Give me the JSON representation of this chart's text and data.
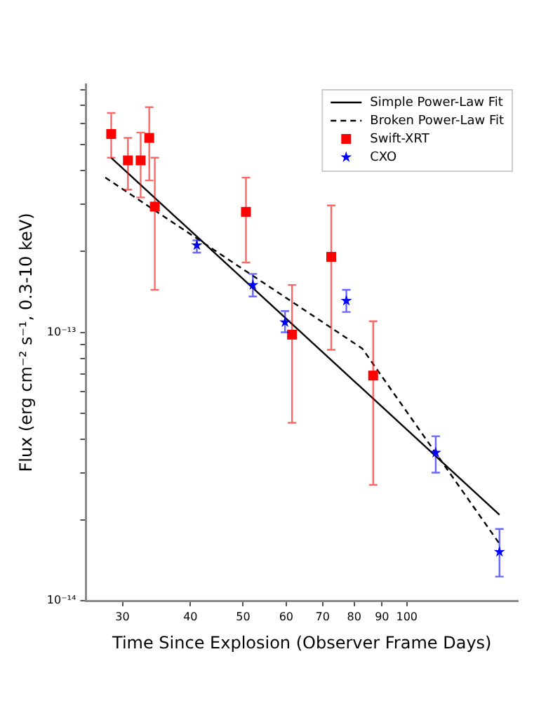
{
  "chart_data": {
    "type": "scatter",
    "xlabel": "Time Since Explosion (Observer Frame Days)",
    "ylabel": "Flux (erg cm⁻² s⁻¹, 0.3-10 keV)",
    "log": "xy",
    "xlim": [
      25.7,
      160
    ],
    "ylim": [
      1e-14,
      8.4e-13
    ],
    "xticks": [
      30,
      40,
      50,
      60,
      70,
      80,
      90,
      100
    ],
    "yticks": [
      {
        "value": 1e-14,
        "label": "10⁻¹⁴"
      },
      {
        "value": 2e-14,
        "label": null
      },
      {
        "value": 3e-14,
        "label": null
      },
      {
        "value": 4e-14,
        "label": null
      },
      {
        "value": 5e-14,
        "label": null
      },
      {
        "value": 6e-14,
        "label": null
      },
      {
        "value": 7e-14,
        "label": null
      },
      {
        "value": 8e-14,
        "label": null
      },
      {
        "value": 9e-14,
        "label": null
      },
      {
        "value": 1e-13,
        "label": "10⁻¹³"
      },
      {
        "value": 2e-13,
        "label": null
      },
      {
        "value": 3e-13,
        "label": null
      },
      {
        "value": 4e-13,
        "label": null
      },
      {
        "value": 5e-13,
        "label": null
      },
      {
        "value": 6e-13,
        "label": null
      },
      {
        "value": 7e-13,
        "label": null
      },
      {
        "value": 8e-13,
        "label": null
      }
    ],
    "grid": false,
    "legend": "top right",
    "series": [
      {
        "name": "Simple Power-Law Fit",
        "type": "line",
        "color": "#000000",
        "marker": "none",
        "line_style": "solid",
        "x": [
          28.6,
          148
        ],
        "values": [
          4.47e-13,
          2.09e-14
        ]
      },
      {
        "name": "Broken Power-Law Fit",
        "type": "line",
        "color": "#000000",
        "marker": "none",
        "line_style": "dashed",
        "x": [
          27.9,
          82.8,
          148
        ],
        "values": [
          3.77e-13,
          8.7e-14,
          1.63e-14
        ]
      },
      {
        "name": "Swift-XRT",
        "color": "#ff0000",
        "marker": "square",
        "x": [
          28.6,
          30.7,
          32.4,
          33.6,
          34.4,
          50.6,
          61.5,
          72.6,
          86.7
        ],
        "values": [
          5.48e-13,
          4.37e-13,
          4.37e-13,
          5.3e-13,
          2.94e-13,
          2.81e-13,
          9.8e-14,
          1.91e-13,
          6.9e-14
        ],
        "errors": [
          [
            4.47e-13,
            6.56e-13
          ],
          [
            3.4e-13,
            5.3e-13
          ],
          [
            3.18e-13,
            5.55e-13
          ],
          [
            3.68e-13,
            6.9e-13
          ],
          [
            1.44e-13,
            4.47e-13
          ],
          [
            1.82e-13,
            3.77e-13
          ],
          [
            4.6e-14,
            1.5e-13
          ],
          [
            8.6e-14,
            2.97e-13
          ],
          [
            2.7e-14,
            1.1e-13
          ]
        ]
      },
      {
        "name": "CXO",
        "color": "#0000ff",
        "marker": "star",
        "x": [
          41.1,
          52.1,
          59.7,
          77.4,
          113,
          148
        ],
        "values": [
          2.11e-13,
          1.5e-13,
          1.09e-13,
          1.31e-13,
          3.56e-14,
          1.52e-14
        ],
        "errors": [
          [
            1.98e-13,
            2.2e-13
          ],
          [
            1.36e-13,
            1.65e-13
          ],
          [
            1e-13,
            1.2e-13
          ],
          [
            1.19e-13,
            1.44e-13
          ],
          [
            3e-14,
            4.1e-14
          ],
          [
            1.23e-14,
            1.85e-14
          ]
        ]
      }
    ]
  }
}
